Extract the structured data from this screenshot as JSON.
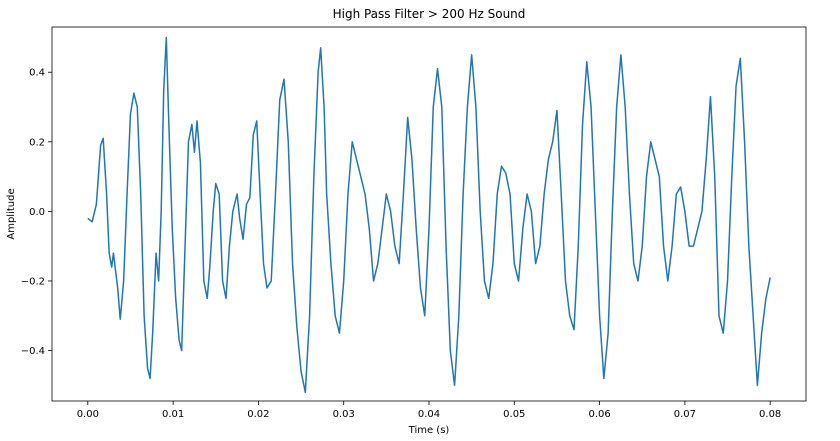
{
  "chart_data": {
    "type": "line",
    "title": "High Pass Filter > 200 Hz Sound",
    "xlabel": "Time (s)",
    "ylabel": "Amplitude",
    "xlim": [
      -0.0042,
      0.0842
    ],
    "ylim": [
      -0.545,
      0.53
    ],
    "xticks": [
      {
        "value": 0.0,
        "label": "0.00"
      },
      {
        "value": 0.01,
        "label": "0.01"
      },
      {
        "value": 0.02,
        "label": "0.02"
      },
      {
        "value": 0.03,
        "label": "0.03"
      },
      {
        "value": 0.04,
        "label": "0.04"
      },
      {
        "value": 0.05,
        "label": "0.05"
      },
      {
        "value": 0.06,
        "label": "0.06"
      },
      {
        "value": 0.07,
        "label": "0.07"
      },
      {
        "value": 0.08,
        "label": "0.08"
      }
    ],
    "yticks": [
      {
        "value": -0.4,
        "label": "−0.4"
      },
      {
        "value": -0.2,
        "label": "−0.2"
      },
      {
        "value": 0.0,
        "label": "0.0"
      },
      {
        "value": 0.2,
        "label": "0.2"
      },
      {
        "value": 0.4,
        "label": "0.4"
      }
    ],
    "grid": false,
    "series": [
      {
        "color": "#1f77b4",
        "points": [
          [
            0.0,
            -0.02
          ],
          [
            0.0005,
            -0.03
          ],
          [
            0.001,
            0.02
          ],
          [
            0.0015,
            0.19
          ],
          [
            0.0018,
            0.21
          ],
          [
            0.0022,
            0.05
          ],
          [
            0.0025,
            -0.12
          ],
          [
            0.0028,
            -0.16
          ],
          [
            0.003,
            -0.12
          ],
          [
            0.0035,
            -0.22
          ],
          [
            0.0038,
            -0.31
          ],
          [
            0.0042,
            -0.2
          ],
          [
            0.0046,
            0.05
          ],
          [
            0.005,
            0.28
          ],
          [
            0.0054,
            0.34
          ],
          [
            0.0058,
            0.3
          ],
          [
            0.0062,
            0.05
          ],
          [
            0.0066,
            -0.3
          ],
          [
            0.007,
            -0.45
          ],
          [
            0.0073,
            -0.48
          ],
          [
            0.0076,
            -0.35
          ],
          [
            0.008,
            -0.12
          ],
          [
            0.0083,
            -0.2
          ],
          [
            0.0086,
            0.0
          ],
          [
            0.0089,
            0.35
          ],
          [
            0.0092,
            0.5
          ],
          [
            0.0095,
            0.25
          ],
          [
            0.0099,
            -0.05
          ],
          [
            0.0103,
            -0.25
          ],
          [
            0.0107,
            -0.37
          ],
          [
            0.011,
            -0.4
          ],
          [
            0.0114,
            -0.1
          ],
          [
            0.0118,
            0.2
          ],
          [
            0.0122,
            0.25
          ],
          [
            0.0125,
            0.17
          ],
          [
            0.0128,
            0.26
          ],
          [
            0.0132,
            0.14
          ],
          [
            0.0136,
            -0.2
          ],
          [
            0.014,
            -0.25
          ],
          [
            0.0143,
            -0.16
          ],
          [
            0.0147,
            0.0
          ],
          [
            0.015,
            0.08
          ],
          [
            0.0154,
            0.05
          ],
          [
            0.0158,
            -0.2
          ],
          [
            0.0162,
            -0.25
          ],
          [
            0.0166,
            -0.1
          ],
          [
            0.017,
            0.0
          ],
          [
            0.0175,
            0.05
          ],
          [
            0.0178,
            -0.02
          ],
          [
            0.0182,
            -0.08
          ],
          [
            0.0186,
            0.02
          ],
          [
            0.019,
            0.04
          ],
          [
            0.0194,
            0.22
          ],
          [
            0.0198,
            0.26
          ],
          [
            0.0202,
            0.05
          ],
          [
            0.0206,
            -0.15
          ],
          [
            0.021,
            -0.22
          ],
          [
            0.0215,
            -0.2
          ],
          [
            0.022,
            0.05
          ],
          [
            0.0225,
            0.32
          ],
          [
            0.023,
            0.38
          ],
          [
            0.0235,
            0.2
          ],
          [
            0.024,
            -0.15
          ],
          [
            0.0245,
            -0.33
          ],
          [
            0.025,
            -0.46
          ],
          [
            0.0255,
            -0.52
          ],
          [
            0.026,
            -0.3
          ],
          [
            0.0265,
            0.1
          ],
          [
            0.027,
            0.4
          ],
          [
            0.0273,
            0.47
          ],
          [
            0.0277,
            0.3
          ],
          [
            0.028,
            0.05
          ],
          [
            0.0285,
            -0.15
          ],
          [
            0.029,
            -0.3
          ],
          [
            0.0295,
            -0.35
          ],
          [
            0.03,
            -0.2
          ],
          [
            0.0305,
            0.05
          ],
          [
            0.031,
            0.2
          ],
          [
            0.0315,
            0.15
          ],
          [
            0.032,
            0.1
          ],
          [
            0.0325,
            0.05
          ],
          [
            0.033,
            -0.05
          ],
          [
            0.0335,
            -0.2
          ],
          [
            0.034,
            -0.15
          ],
          [
            0.0345,
            -0.05
          ],
          [
            0.035,
            0.05
          ],
          [
            0.0355,
            0.0
          ],
          [
            0.036,
            -0.1
          ],
          [
            0.0365,
            -0.15
          ],
          [
            0.037,
            0.05
          ],
          [
            0.0375,
            0.27
          ],
          [
            0.038,
            0.15
          ],
          [
            0.0385,
            -0.05
          ],
          [
            0.039,
            -0.22
          ],
          [
            0.0395,
            -0.3
          ],
          [
            0.04,
            -0.05
          ],
          [
            0.0405,
            0.3
          ],
          [
            0.041,
            0.41
          ],
          [
            0.0415,
            0.3
          ],
          [
            0.042,
            -0.1
          ],
          [
            0.0425,
            -0.4
          ],
          [
            0.043,
            -0.5
          ],
          [
            0.0435,
            -0.3
          ],
          [
            0.044,
            0.05
          ],
          [
            0.0445,
            0.3
          ],
          [
            0.045,
            0.45
          ],
          [
            0.0455,
            0.3
          ],
          [
            0.046,
            0.0
          ],
          [
            0.0465,
            -0.2
          ],
          [
            0.047,
            -0.25
          ],
          [
            0.0475,
            -0.15
          ],
          [
            0.048,
            0.05
          ],
          [
            0.0485,
            0.13
          ],
          [
            0.049,
            0.11
          ],
          [
            0.0495,
            0.05
          ],
          [
            0.05,
            -0.15
          ],
          [
            0.0505,
            -0.2
          ],
          [
            0.051,
            -0.05
          ],
          [
            0.0515,
            0.05
          ],
          [
            0.052,
            0.0
          ],
          [
            0.0525,
            -0.15
          ],
          [
            0.053,
            -0.1
          ],
          [
            0.0535,
            0.05
          ],
          [
            0.054,
            0.15
          ],
          [
            0.0545,
            0.2
          ],
          [
            0.055,
            0.29
          ],
          [
            0.0555,
            0.05
          ],
          [
            0.056,
            -0.2
          ],
          [
            0.0565,
            -0.3
          ],
          [
            0.057,
            -0.34
          ],
          [
            0.0575,
            -0.1
          ],
          [
            0.058,
            0.25
          ],
          [
            0.0585,
            0.43
          ],
          [
            0.059,
            0.3
          ],
          [
            0.0595,
            0.0
          ],
          [
            0.06,
            -0.3
          ],
          [
            0.0605,
            -0.48
          ],
          [
            0.061,
            -0.35
          ],
          [
            0.0615,
            0.0
          ],
          [
            0.062,
            0.3
          ],
          [
            0.0625,
            0.45
          ],
          [
            0.063,
            0.3
          ],
          [
            0.0635,
            0.05
          ],
          [
            0.064,
            -0.15
          ],
          [
            0.0645,
            -0.2
          ],
          [
            0.065,
            -0.1
          ],
          [
            0.0655,
            0.1
          ],
          [
            0.066,
            0.2
          ],
          [
            0.0665,
            0.15
          ],
          [
            0.067,
            0.1
          ],
          [
            0.0675,
            -0.1
          ],
          [
            0.068,
            -0.2
          ],
          [
            0.0685,
            -0.1
          ],
          [
            0.069,
            0.05
          ],
          [
            0.0695,
            0.07
          ],
          [
            0.07,
            0.0
          ],
          [
            0.0705,
            -0.1
          ],
          [
            0.071,
            -0.1
          ],
          [
            0.0715,
            -0.05
          ],
          [
            0.072,
            0.0
          ],
          [
            0.0725,
            0.15
          ],
          [
            0.073,
            0.33
          ],
          [
            0.0735,
            0.1
          ],
          [
            0.074,
            -0.3
          ],
          [
            0.0745,
            -0.35
          ],
          [
            0.075,
            -0.2
          ],
          [
            0.0755,
            0.1
          ],
          [
            0.076,
            0.36
          ],
          [
            0.0765,
            0.44
          ],
          [
            0.077,
            0.2
          ],
          [
            0.0775,
            -0.1
          ],
          [
            0.078,
            -0.3
          ],
          [
            0.0785,
            -0.5
          ],
          [
            0.079,
            -0.35
          ],
          [
            0.0795,
            -0.25
          ],
          [
            0.08,
            -0.19
          ]
        ]
      }
    ]
  }
}
